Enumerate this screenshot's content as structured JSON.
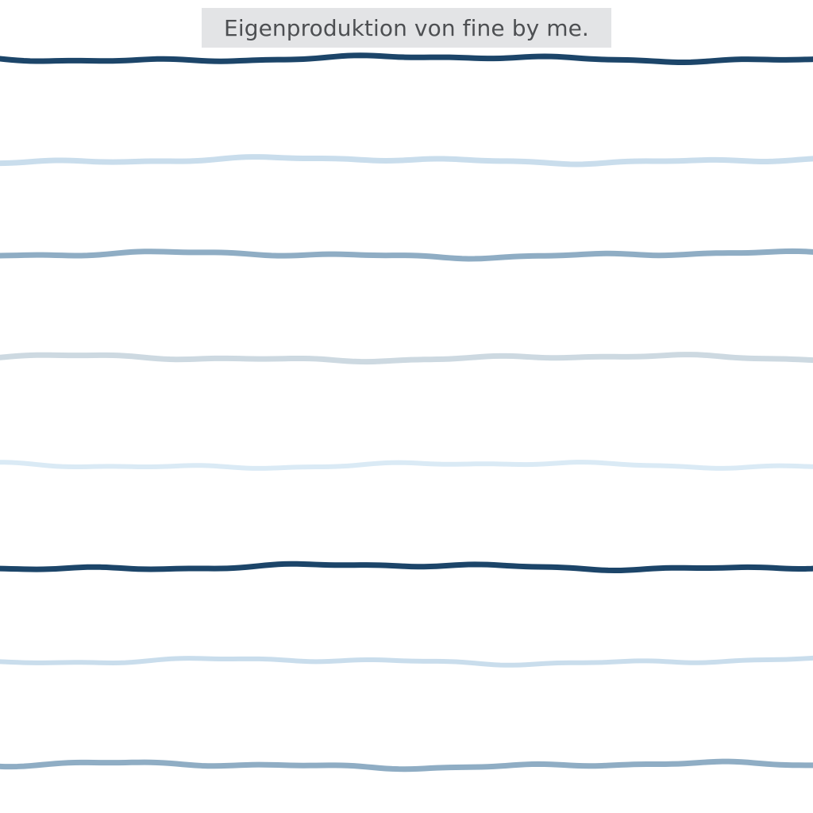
{
  "caption": {
    "text": "Eigenproduktion von fine by me."
  },
  "pattern": {
    "name": "wavy-horizontal-stripes",
    "colors": {
      "background": "#ffffff",
      "caption_background": "#e3e4e6",
      "caption_text": "#4d4f52"
    },
    "stripes": [
      {
        "color": "#1c4569"
      },
      {
        "color": "#c9ddec"
      },
      {
        "color": "#8fadc4"
      },
      {
        "color": "#cdd9e1"
      },
      {
        "color": "#daeaf5"
      },
      {
        "color": "#1c4569"
      },
      {
        "color": "#c9ddec"
      },
      {
        "color": "#8fadc4"
      }
    ]
  }
}
